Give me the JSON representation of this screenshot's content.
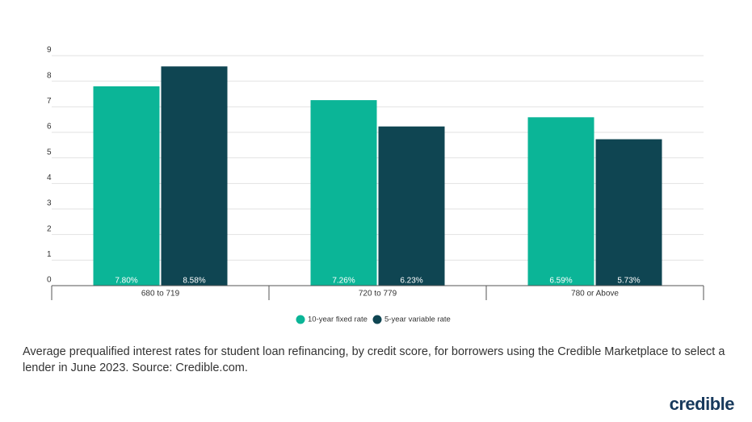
{
  "chart_data": {
    "type": "bar",
    "categories": [
      "680 to 719",
      "720 to 779",
      "780 or Above"
    ],
    "series": [
      {
        "name": "10-year fixed rate",
        "color": "#0bb597",
        "values": [
          7.8,
          7.26,
          6.59
        ],
        "value_labels": [
          "7.80%",
          "7.26%",
          "6.59%"
        ]
      },
      {
        "name": "5-year variable rate",
        "color": "#0f4552",
        "values": [
          8.58,
          6.23,
          5.73
        ],
        "value_labels": [
          "8.58%",
          "6.23%",
          "5.73%"
        ]
      }
    ],
    "ylim": [
      0,
      9
    ],
    "yticks": [
      0,
      1,
      2,
      3,
      4,
      5,
      6,
      7,
      8,
      9
    ],
    "grid": true,
    "caption": "Average prequalified interest rates for student loan refinancing, by credit score, for borrowers using the Credible Marketplace to select a lender in June 2023. Source: Credible.com."
  },
  "brand": "credible"
}
